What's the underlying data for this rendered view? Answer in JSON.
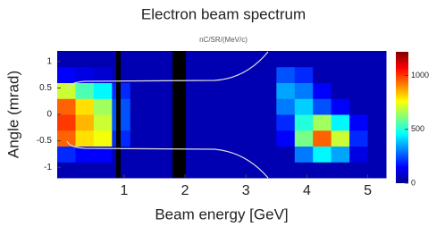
{
  "chart_data": {
    "type": "heatmap",
    "title": "Electron beam spectrum",
    "subtitle": "nC/SR/(MeV/c)",
    "x_label": "Beam energy [GeV]",
    "y_label": "Angle (mrad)",
    "xlim": [
      -0.1,
      5.3
    ],
    "ylim": [
      -1.2,
      1.2
    ],
    "xticks": [
      1,
      2,
      3,
      4,
      5
    ],
    "yticks": [
      1,
      0.5,
      0,
      -0.5,
      -1
    ],
    "xbins": [
      -0.1,
      0.2,
      0.5,
      0.8,
      1.1,
      1.4,
      1.7,
      2.0,
      2.3,
      2.6,
      2.9,
      3.2,
      3.5,
      3.8,
      4.1,
      4.4,
      4.7,
      5.0,
      5.3
    ],
    "ybins": [
      -1.2,
      -0.9,
      -0.6,
      -0.3,
      0,
      0.3,
      0.6,
      0.9,
      1.2
    ],
    "z": [
      [
        60,
        60,
        60,
        60,
        60,
        60,
        60,
        60,
        60,
        60,
        60,
        60,
        60,
        60,
        60,
        60,
        60,
        60
      ],
      [
        200,
        150,
        150,
        60,
        60,
        60,
        60,
        60,
        60,
        60,
        60,
        60,
        60,
        300,
        450,
        350,
        120,
        60
      ],
      [
        950,
        800,
        750,
        200,
        60,
        60,
        60,
        60,
        60,
        60,
        60,
        60,
        150,
        600,
        950,
        700,
        200,
        60
      ],
      [
        1000,
        850,
        700,
        250,
        60,
        60,
        60,
        60,
        60,
        60,
        60,
        60,
        200,
        500,
        650,
        450,
        150,
        60
      ],
      [
        950,
        800,
        650,
        250,
        60,
        60,
        60,
        60,
        60,
        60,
        60,
        60,
        300,
        400,
        250,
        150,
        60,
        60
      ],
      [
        700,
        550,
        450,
        200,
        60,
        60,
        60,
        60,
        60,
        60,
        60,
        60,
        350,
        300,
        150,
        60,
        60,
        60
      ],
      [
        150,
        120,
        100,
        60,
        60,
        60,
        60,
        60,
        60,
        60,
        60,
        60,
        250,
        200,
        60,
        60,
        60,
        60
      ],
      [
        60,
        60,
        60,
        60,
        60,
        60,
        60,
        60,
        60,
        60,
        60,
        60,
        60,
        60,
        60,
        60,
        60,
        60
      ]
    ],
    "colormap": "jet",
    "clim": [
      0,
      1220
    ],
    "colorbar_ticks": [
      1000,
      500,
      0
    ]
  }
}
